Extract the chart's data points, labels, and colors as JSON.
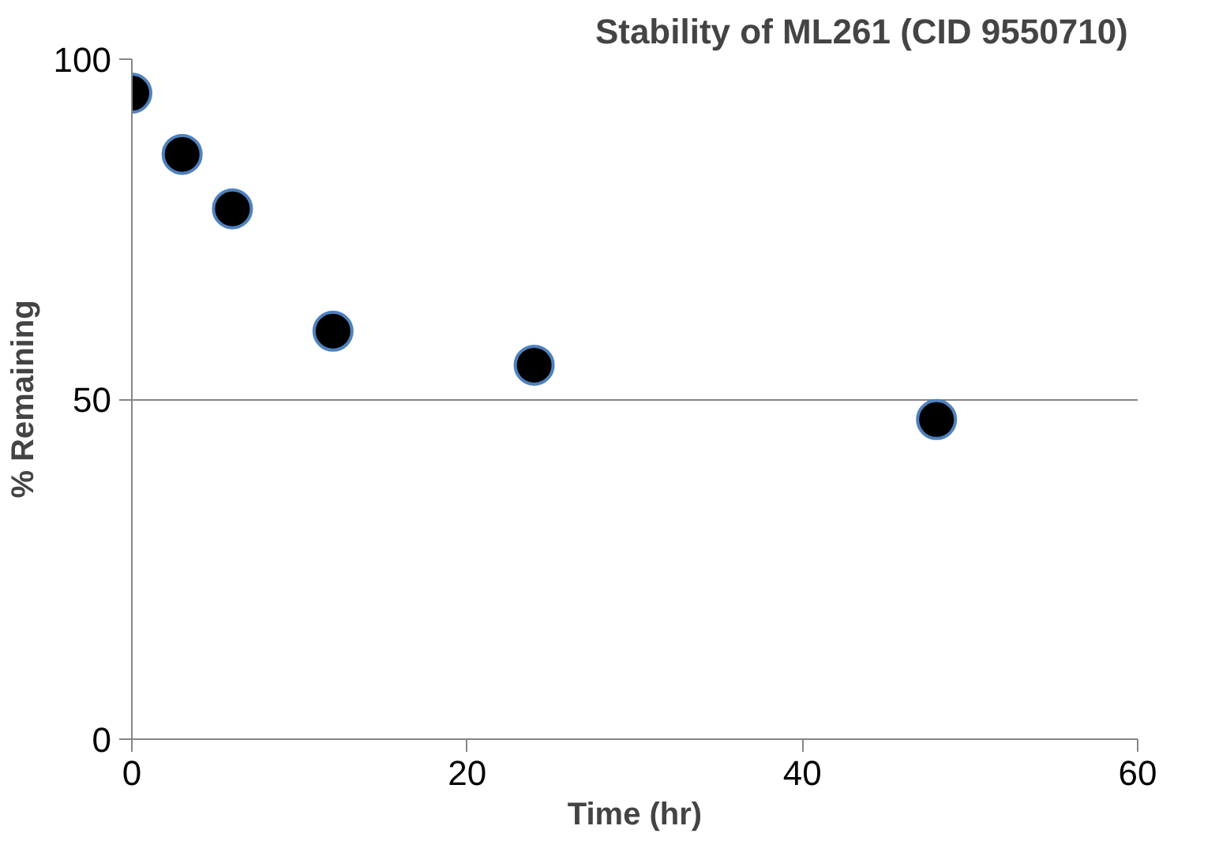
{
  "chart_data": {
    "type": "scatter",
    "title": "Stability of  ML261 (CID 9550710)",
    "xlabel": "Time (hr)",
    "ylabel": "% Remaining",
    "x": [
      0,
      3,
      6,
      12,
      24,
      48
    ],
    "series": [
      {
        "color": "#000000",
        "values": [
          95,
          86,
          78,
          60,
          55,
          47
        ]
      }
    ],
    "xlim": [
      0,
      60
    ],
    "xticks": [
      0,
      20,
      40,
      60
    ],
    "ylim": [
      0,
      100
    ],
    "yticks": [
      0,
      50,
      100
    ],
    "grid": "y",
    "marker": "circle"
  }
}
